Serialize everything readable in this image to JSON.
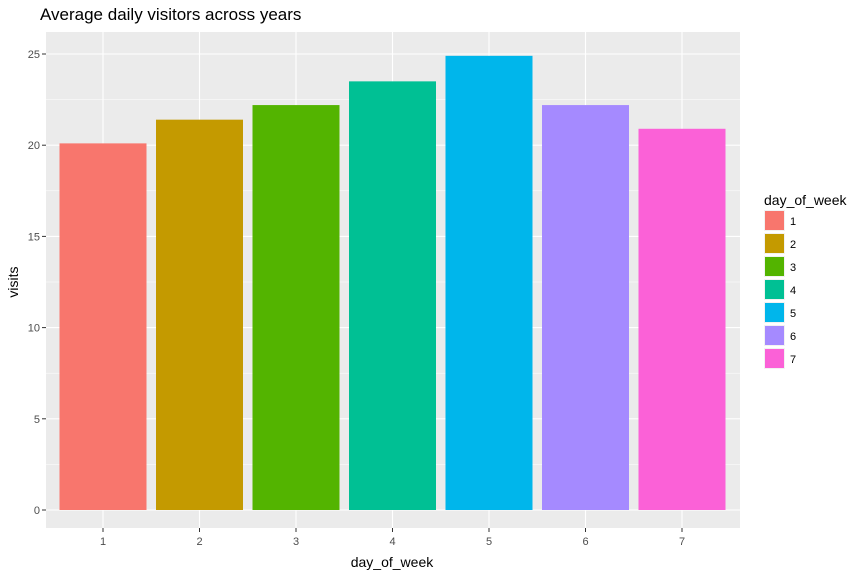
{
  "chart_data": {
    "type": "bar",
    "title": "Average daily visitors across years",
    "xlabel": "day_of_week",
    "ylabel": "visits",
    "categories": [
      "1",
      "2",
      "3",
      "4",
      "5",
      "6",
      "7"
    ],
    "values": [
      20.1,
      21.4,
      22.2,
      23.5,
      24.9,
      22.2,
      20.9
    ],
    "colors": [
      "#F8766D",
      "#C49A00",
      "#53B400",
      "#00C094",
      "#00B6EB",
      "#A58AFF",
      "#FB61D7"
    ],
    "ylim": [
      0,
      26.2
    ],
    "yticks": [
      0,
      5,
      10,
      15,
      20,
      25
    ],
    "grid": true,
    "panel_background": "#EBEBEB",
    "legend": {
      "title": "day_of_week",
      "position": "right",
      "entries": [
        "1",
        "2",
        "3",
        "4",
        "5",
        "6",
        "7"
      ]
    }
  }
}
